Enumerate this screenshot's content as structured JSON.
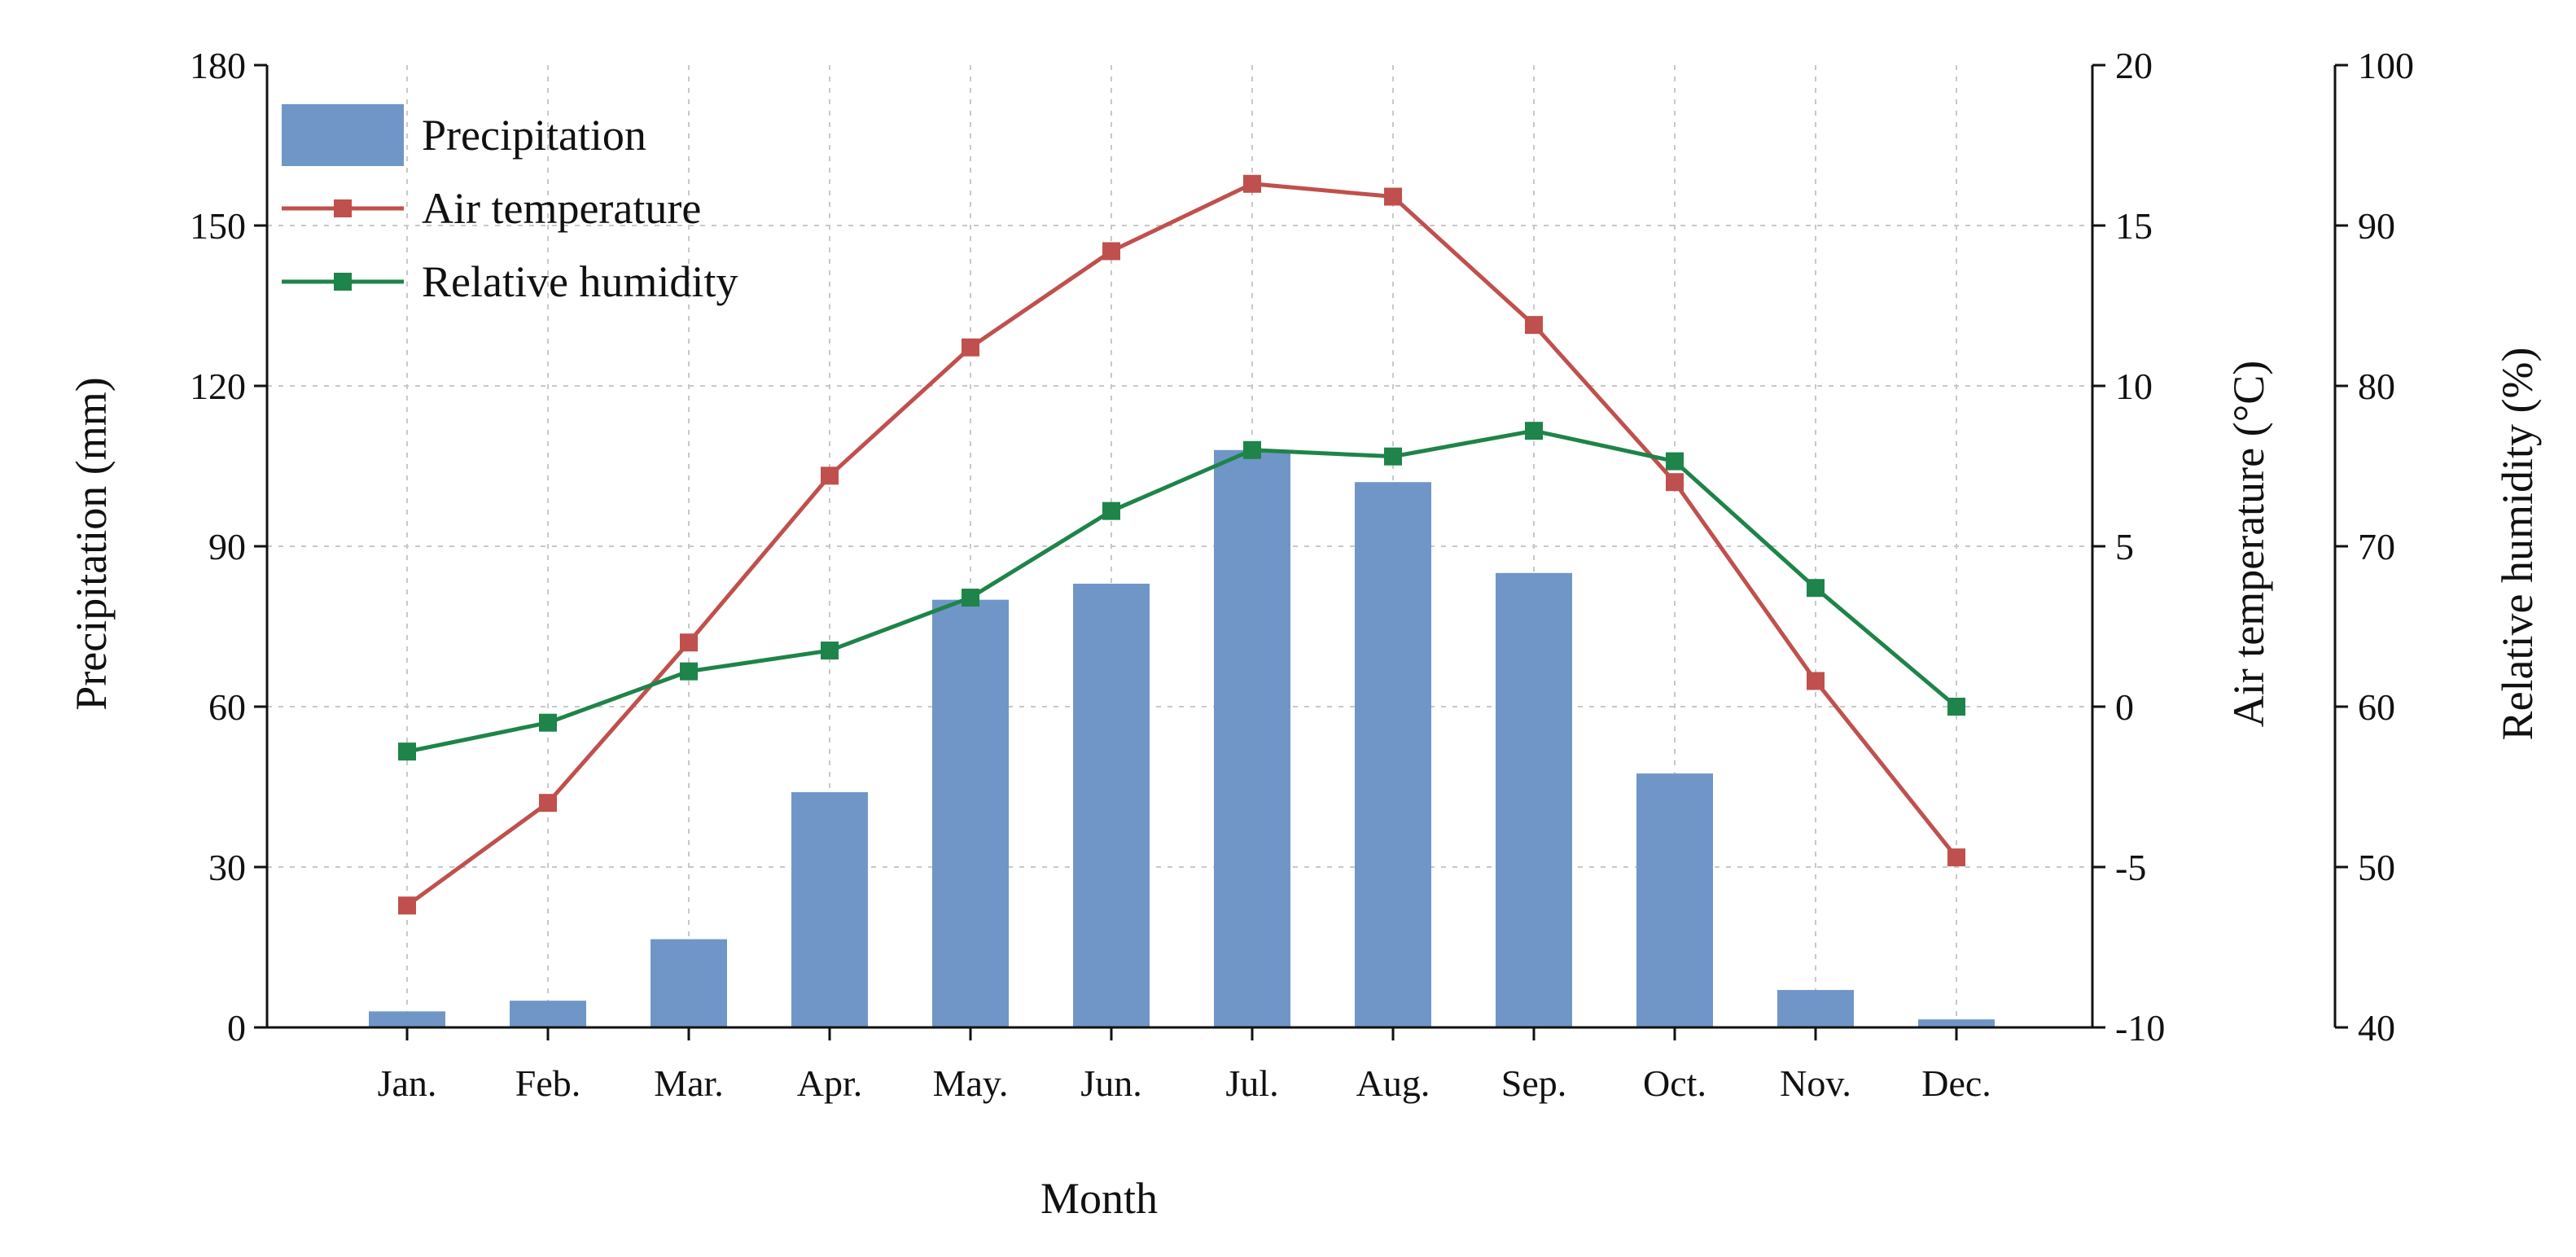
{
  "chart_data": {
    "type": "bar+line",
    "title": "",
    "xlabel": "Month",
    "categories": [
      "Jan.",
      "Feb.",
      "Mar.",
      "Apr.",
      "May.",
      "Jun.",
      "Jul.",
      "Aug.",
      "Sep.",
      "Oct.",
      "Nov.",
      "Dec."
    ],
    "grid": true,
    "legend_position": "top-left",
    "axes": {
      "left": {
        "label": "Precipitation (mm)",
        "min": 0,
        "max": 180,
        "ticks": [
          "0",
          "30",
          "60",
          "90",
          "120",
          "150",
          "180"
        ]
      },
      "right": {
        "label": "Air temperature (°C)",
        "min": -10,
        "max": 20,
        "ticks": [
          "-10",
          "-5",
          "0",
          "5",
          "10",
          "15",
          "20"
        ]
      },
      "right2": {
        "label": "Relative humidity (%)",
        "min": 40,
        "max": 100,
        "ticks": [
          "40",
          "50",
          "60",
          "70",
          "80",
          "90",
          "100"
        ]
      }
    },
    "series": [
      {
        "name": "Precipitation",
        "type": "bar",
        "axis": "left",
        "color": "#7096c8",
        "values": [
          3,
          5,
          16.5,
          44,
          80,
          83,
          108,
          102,
          85,
          47.5,
          7,
          1.5
        ]
      },
      {
        "name": "Air temperature",
        "type": "line",
        "axis": "right",
        "color": "#c0504d",
        "values": [
          -6.2,
          -3.0,
          2.0,
          7.2,
          11.2,
          14.2,
          16.3,
          15.9,
          11.9,
          7.0,
          0.8,
          -4.7
        ]
      },
      {
        "name": "Relative humidity",
        "type": "line",
        "axis": "right2",
        "color": "#1e8449",
        "values": [
          57.2,
          59.0,
          62.2,
          63.5,
          66.8,
          72.2,
          76.0,
          75.6,
          77.2,
          75.3,
          67.4,
          60.0
        ]
      }
    ]
  }
}
